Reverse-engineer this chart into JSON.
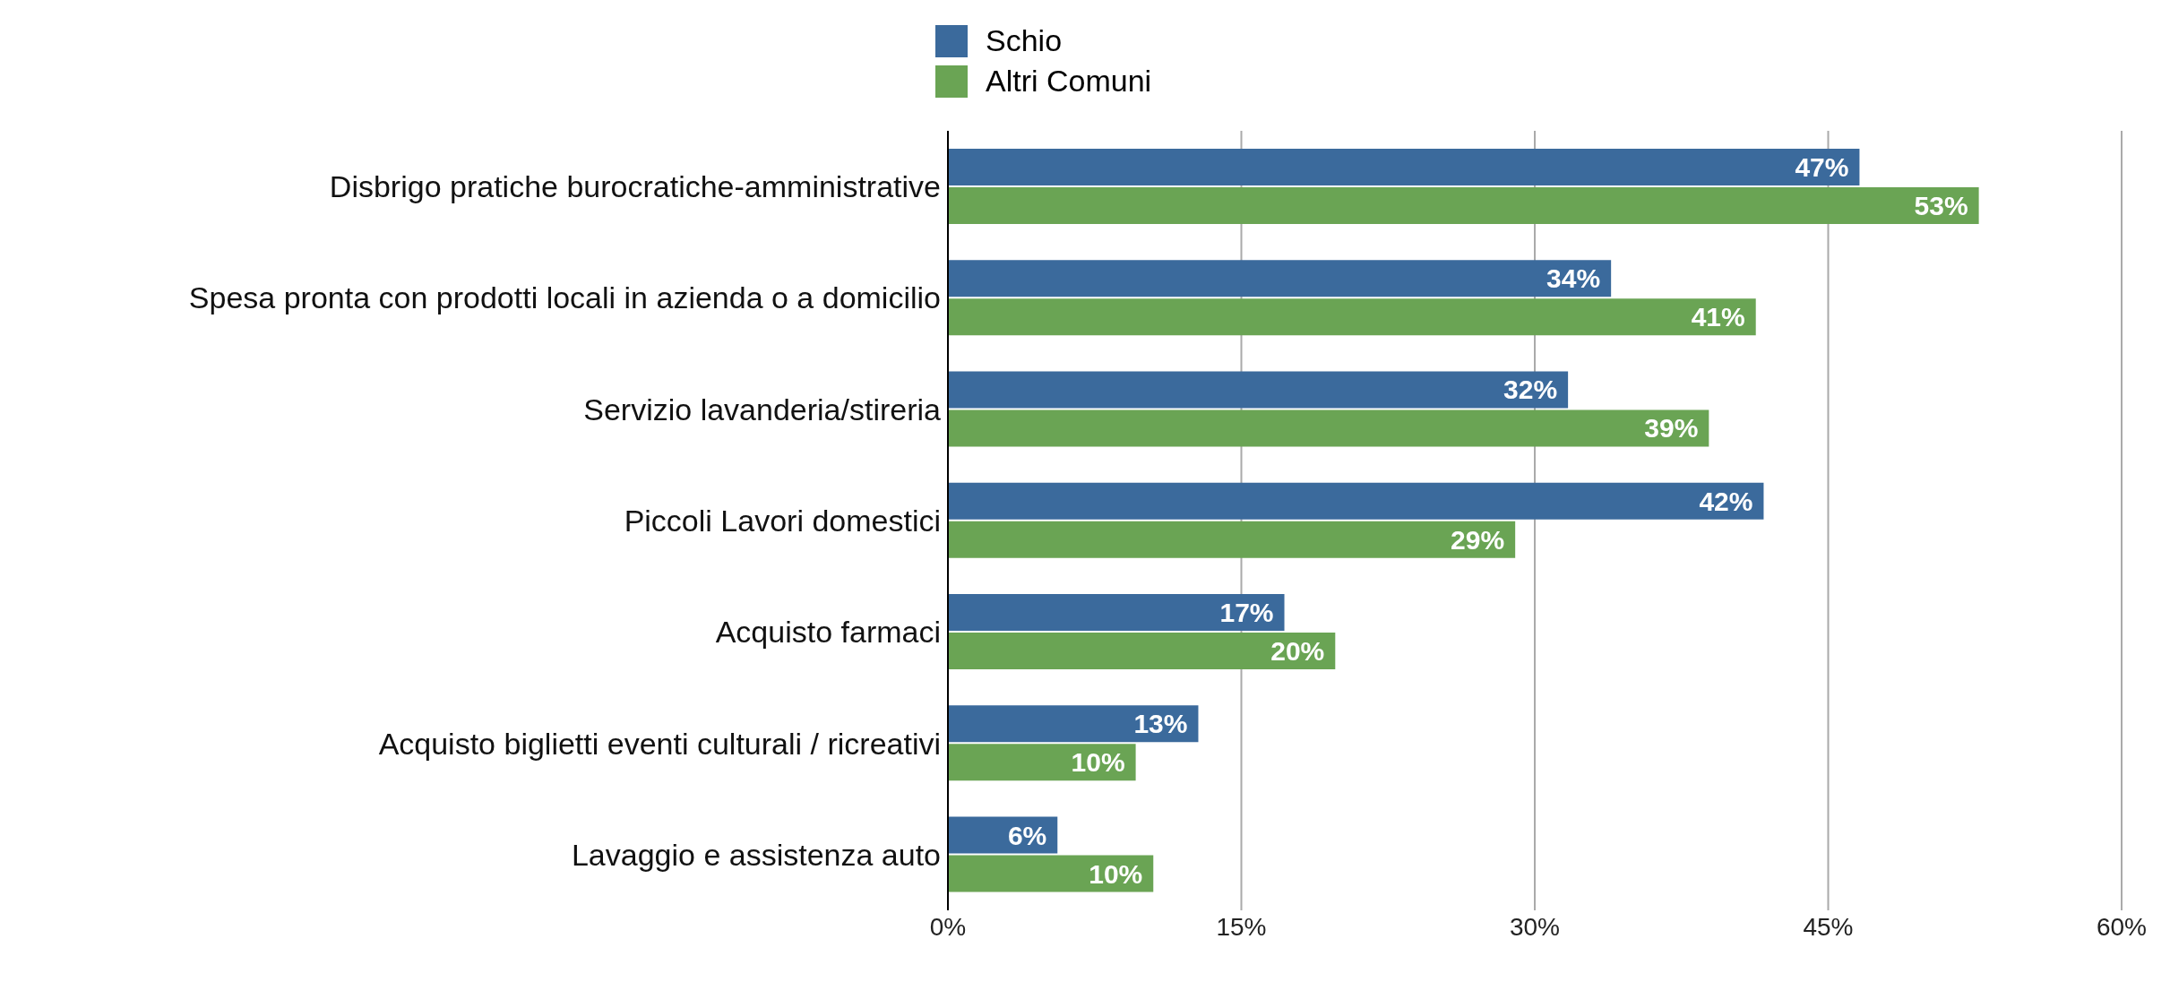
{
  "chart_data": {
    "type": "bar",
    "orientation": "horizontal",
    "categories": [
      "Disbrigo pratiche burocratiche-amministrative",
      "Spesa pronta con prodotti locali in azienda o a domicilio",
      "Servizio lavanderia/stireria",
      "Piccoli Lavori domestici",
      "Acquisto farmaci",
      "Acquisto biglietti eventi culturali / ricreativi",
      "Lavaggio e assistenza auto"
    ],
    "series": [
      {
        "name": "Schio",
        "color": "#3b6a9c",
        "values": [
          46.6,
          33.9,
          31.7,
          41.7,
          17.2,
          12.8,
          5.6
        ],
        "value_labels": [
          "47%",
          "34%",
          "32%",
          "42%",
          "17%",
          "13%",
          "6%"
        ]
      },
      {
        "name": "Altri Comuni",
        "color": "#6aa454",
        "values": [
          52.7,
          41.3,
          38.9,
          29.0,
          19.8,
          9.6,
          10.5
        ],
        "value_labels": [
          "53%",
          "41%",
          "39%",
          "29%",
          "20%",
          "10%",
          "10%"
        ]
      }
    ],
    "xlim": [
      0,
      60
    ],
    "xticks": [
      {
        "value": 0,
        "label": "0%"
      },
      {
        "value": 15,
        "label": "15%"
      },
      {
        "value": 30,
        "label": "30%"
      },
      {
        "value": 45,
        "label": "45%"
      },
      {
        "value": 60,
        "label": "60%"
      }
    ],
    "grid": "x",
    "legend": "top"
  }
}
